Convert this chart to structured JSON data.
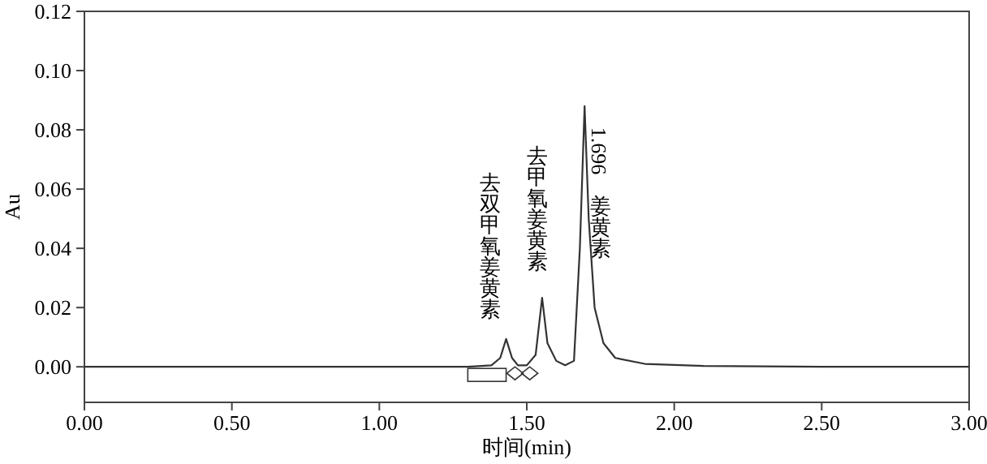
{
  "chart_data": {
    "type": "line",
    "xlabel": "时间(min)",
    "ylabel": "Au",
    "x": [
      0,
      0.5,
      1.0,
      1.3,
      1.38,
      1.41,
      1.43,
      1.45,
      1.47,
      1.5,
      1.53,
      1.552,
      1.57,
      1.6,
      1.63,
      1.66,
      1.68,
      1.696,
      1.71,
      1.73,
      1.76,
      1.8,
      1.9,
      2.1,
      2.5,
      3.0
    ],
    "series": [
      {
        "color": "#333333",
        "values": [
          0,
          0,
          0,
          0,
          0.0005,
          0.003,
          0.0094,
          0.003,
          0.0005,
          0.0005,
          0.004,
          0.0233,
          0.008,
          0.002,
          0.0005,
          0.002,
          0.04,
          0.088,
          0.05,
          0.02,
          0.008,
          0.003,
          0.001,
          0.0003,
          0,
          0
        ]
      }
    ],
    "xlim": [
      0,
      3
    ],
    "ylim": [
      -0.012,
      0.12
    ],
    "xticks": [
      {
        "value": 0,
        "label": "0.00"
      },
      {
        "value": 0.5,
        "label": "0.50"
      },
      {
        "value": 1,
        "label": "1.00"
      },
      {
        "value": 1.5,
        "label": "1.50"
      },
      {
        "value": 2,
        "label": "2.00"
      },
      {
        "value": 2.5,
        "label": "2.50"
      },
      {
        "value": 3,
        "label": "3.00"
      }
    ],
    "yticks": [
      {
        "value": 0,
        "label": "0.00"
      },
      {
        "value": 0.02,
        "label": "0.02"
      },
      {
        "value": 0.04,
        "label": "0.04"
      },
      {
        "value": 0.06,
        "label": "0.06"
      },
      {
        "value": 0.08,
        "label": "0.08"
      },
      {
        "value": 0.1,
        "label": "0.10"
      },
      {
        "value": 0.12,
        "label": "0.12"
      }
    ],
    "annotations": [
      {
        "text": "去双甲氧姜黄素",
        "x": 1.43,
        "y": 0.0094
      },
      {
        "text": "去甲氧姜黄素",
        "x": 1.552,
        "y": 0.0233
      },
      {
        "text": "1.696",
        "x": 1.696,
        "y": 0.088
      },
      "姜黄素"
    ],
    "grid": false,
    "line_style": "solid",
    "marker": "none"
  }
}
